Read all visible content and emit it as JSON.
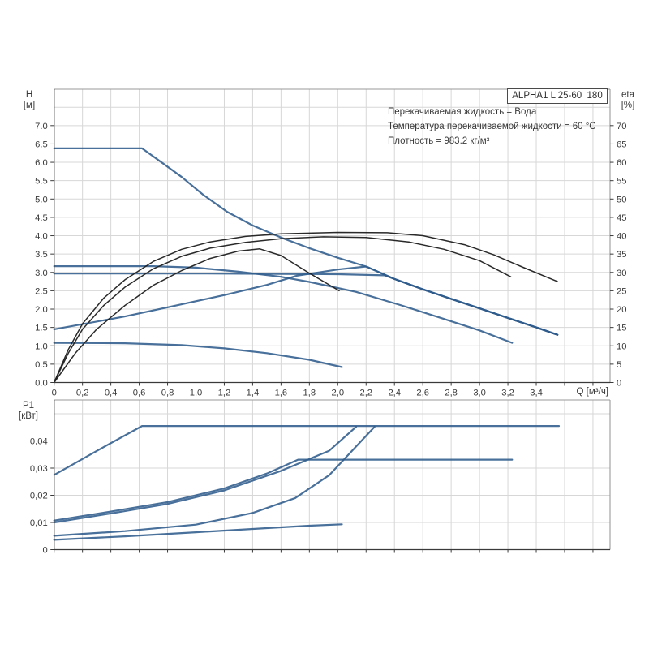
{
  "title_box": {
    "label": "ALPHA1 L 25-60  180"
  },
  "info": {
    "line1": "Перекачиваемая жидкость = Вода",
    "line2": "Температура перекачиваемой жидкости = 60 °C",
    "line3": "Плотность = 983.2 кг/м³"
  },
  "axis_units": {
    "head_top": "H",
    "head_bottom": "[м]",
    "eta_top": "eta",
    "eta_bottom": "[%]",
    "power_top": "P1",
    "power_bottom": "[кВт]",
    "flow": "Q [м³/ч]"
  },
  "colors": {
    "curve_blue": "#2f5c8c",
    "curve_black": "#1f1f1f",
    "grid": "#d7d7d7",
    "border": "#9a9a9a",
    "axis": "#3a3a3a",
    "text": "#3a3a3a"
  },
  "chart_data": [
    {
      "type": "line",
      "title": "ALPHA1 L 25-60 180",
      "xlabel": "Q [м³/ч]",
      "ylabel_left": "H [м]",
      "ylabel_right": "eta [%]",
      "xlim": [
        0,
        3.92
      ],
      "ylim_left": [
        0,
        8
      ],
      "ylim_right": [
        0,
        80
      ],
      "grid": true,
      "x_ticks": {
        "values": [
          0,
          0.2,
          0.4,
          0.6,
          0.8,
          1.0,
          1.2,
          1.4,
          1.6,
          1.8,
          2.0,
          2.2,
          2.4,
          2.6,
          2.8,
          3.0,
          3.2,
          3.4
        ],
        "labels": [
          "0",
          "0,2",
          "0,4",
          "0,6",
          "0,8",
          "1,0",
          "1,2",
          "1,4",
          "1,6",
          "1,8",
          "2,0",
          "2,2",
          "2,4",
          "2,6",
          "2,8",
          "3,0",
          "3,2",
          "3,4"
        ]
      },
      "y_ticks_left": {
        "values": [
          0,
          0.5,
          1,
          1.5,
          2,
          2.5,
          3,
          3.5,
          4,
          4.5,
          5,
          5.5,
          6,
          6.5,
          7
        ],
        "labels": [
          "0.0",
          "0.5",
          "1.0",
          "1.5",
          "2.0",
          "2.5",
          "3.0",
          "3.5",
          "4.0",
          "4.5",
          "5.0",
          "5.5",
          "6.0",
          "6.5",
          "7.0"
        ]
      },
      "y_ticks_right": {
        "values": [
          0,
          5,
          10,
          15,
          20,
          25,
          30,
          35,
          40,
          45,
          50,
          55,
          60,
          65,
          70
        ],
        "labels": [
          "0",
          "5",
          "10",
          "15",
          "20",
          "25",
          "30",
          "35",
          "40",
          "45",
          "50",
          "55",
          "60",
          "65",
          "70"
        ]
      },
      "series": [
        {
          "name": "head-max-speed",
          "color": "blue",
          "axis": "left",
          "points": [
            [
              0,
              6.38
            ],
            [
              0.62,
              6.38
            ],
            [
              0.75,
              6.02
            ],
            [
              0.9,
              5.6
            ],
            [
              1.05,
              5.12
            ],
            [
              1.22,
              4.65
            ],
            [
              1.4,
              4.28
            ],
            [
              1.6,
              3.95
            ],
            [
              1.8,
              3.66
            ],
            [
              2.0,
              3.4
            ],
            [
              2.2,
              3.16
            ],
            [
              2.4,
              2.82
            ],
            [
              2.6,
              2.54
            ],
            [
              2.8,
              2.28
            ],
            [
              3.0,
              2.02
            ],
            [
              3.2,
              1.76
            ],
            [
              3.4,
              1.5
            ],
            [
              3.55,
              1.3
            ]
          ]
        },
        {
          "name": "head-setting-high",
          "color": "blue",
          "axis": "left",
          "points": [
            [
              0,
              3.17
            ],
            [
              0.7,
              3.17
            ],
            [
              1.0,
              3.13
            ],
            [
              1.3,
              3.02
            ],
            [
              1.6,
              2.88
            ],
            [
              1.8,
              2.74
            ],
            [
              2.13,
              2.47
            ],
            [
              2.45,
              2.1
            ],
            [
              2.75,
              1.73
            ],
            [
              3.0,
              1.42
            ],
            [
              3.23,
              1.08
            ]
          ]
        },
        {
          "name": "head-setting-mid",
          "color": "blue",
          "axis": "left",
          "points": [
            [
              0,
              2.97
            ],
            [
              1.0,
              2.97
            ],
            [
              1.6,
              2.96
            ],
            [
              2.0,
              2.95
            ],
            [
              2.33,
              2.92
            ],
            [
              2.6,
              2.54
            ],
            [
              2.8,
              2.28
            ],
            [
              3.0,
              2.02
            ],
            [
              3.2,
              1.76
            ],
            [
              3.4,
              1.5
            ],
            [
              3.55,
              1.3
            ]
          ]
        },
        {
          "name": "head-proportional",
          "color": "blue",
          "axis": "left",
          "points": [
            [
              0,
              1.45
            ],
            [
              0.5,
              1.8
            ],
            [
              0.9,
              2.13
            ],
            [
              1.22,
              2.4
            ],
            [
              1.5,
              2.66
            ],
            [
              1.71,
              2.91
            ],
            [
              2.0,
              3.08
            ],
            [
              2.2,
              3.16
            ],
            [
              2.4,
              2.82
            ],
            [
              2.6,
              2.54
            ],
            [
              2.8,
              2.28
            ],
            [
              3.0,
              2.02
            ],
            [
              3.2,
              1.76
            ],
            [
              3.4,
              1.5
            ],
            [
              3.55,
              1.3
            ]
          ]
        },
        {
          "name": "head-min-speed",
          "color": "blue",
          "axis": "left",
          "points": [
            [
              0,
              1.08
            ],
            [
              0.5,
              1.07
            ],
            [
              0.9,
              1.02
            ],
            [
              1.2,
              0.93
            ],
            [
              1.5,
              0.8
            ],
            [
              1.8,
              0.62
            ],
            [
              2.03,
              0.42
            ]
          ]
        },
        {
          "name": "eta-max",
          "color": "black",
          "axis": "right",
          "points": [
            [
              0,
              0
            ],
            [
              0.1,
              9
            ],
            [
              0.2,
              16
            ],
            [
              0.35,
              23
            ],
            [
              0.5,
              28
            ],
            [
              0.7,
              33
            ],
            [
              0.9,
              36.3
            ],
            [
              1.1,
              38.3
            ],
            [
              1.35,
              39.8
            ],
            [
              1.6,
              40.5
            ],
            [
              2.0,
              40.9
            ],
            [
              2.35,
              40.8
            ],
            [
              2.6,
              40
            ],
            [
              2.9,
              37.5
            ],
            [
              3.1,
              34.8
            ],
            [
              3.3,
              31.5
            ],
            [
              3.55,
              27.5
            ]
          ]
        },
        {
          "name": "eta-mid",
          "color": "black",
          "axis": "right",
          "points": [
            [
              0,
              0
            ],
            [
              0.1,
              8
            ],
            [
              0.2,
              14.5
            ],
            [
              0.35,
              21
            ],
            [
              0.5,
              26
            ],
            [
              0.7,
              31
            ],
            [
              0.9,
              34.4
            ],
            [
              1.1,
              36.6
            ],
            [
              1.35,
              38.2
            ],
            [
              1.6,
              39.2
            ],
            [
              1.9,
              39.7
            ],
            [
              2.2,
              39.5
            ],
            [
              2.5,
              38.3
            ],
            [
              2.75,
              36.3
            ],
            [
              3.0,
              33.2
            ],
            [
              3.22,
              28.8
            ]
          ]
        },
        {
          "name": "eta-min",
          "color": "black",
          "axis": "right",
          "points": [
            [
              0,
              0
            ],
            [
              0.15,
              8
            ],
            [
              0.3,
              14.5
            ],
            [
              0.5,
              21
            ],
            [
              0.7,
              26.5
            ],
            [
              0.9,
              30.5
            ],
            [
              1.1,
              33.8
            ],
            [
              1.3,
              35.8
            ],
            [
              1.45,
              36.4
            ],
            [
              1.6,
              34.6
            ],
            [
              1.8,
              29.8
            ],
            [
              2.01,
              25
            ]
          ]
        }
      ]
    },
    {
      "type": "line",
      "title": "P1 power curves",
      "xlabel": "Q [м³/ч]",
      "ylabel_left": "P1 [кВт]",
      "xlim": [
        0,
        3.92
      ],
      "ylim_left": [
        0,
        0.0551
      ],
      "grid": true,
      "y_ticks_left": {
        "values": [
          0,
          0.01,
          0.02,
          0.03,
          0.04
        ],
        "labels": [
          "0",
          "0,01",
          "0,02",
          "0,03",
          "0,04"
        ]
      },
      "series": [
        {
          "name": "p1-max-speed",
          "color": "blue",
          "axis": "left",
          "points": [
            [
              0,
              0.0275
            ],
            [
              0.3,
              0.0363
            ],
            [
              0.62,
              0.0455
            ],
            [
              3.56,
              0.0455
            ]
          ]
        },
        {
          "name": "p1-setting-high",
          "color": "blue",
          "axis": "left",
          "points": [
            [
              0,
              0.0107
            ],
            [
              0.4,
              0.014
            ],
            [
              0.8,
              0.0175
            ],
            [
              1.2,
              0.0225
            ],
            [
              1.5,
              0.028
            ],
            [
              1.72,
              0.0331
            ],
            [
              3.23,
              0.0331
            ]
          ]
        },
        {
          "name": "p1-setting-mid",
          "color": "blue",
          "axis": "left",
          "points": [
            [
              0,
              0.01
            ],
            [
              0.4,
              0.0133
            ],
            [
              0.8,
              0.0168
            ],
            [
              1.2,
              0.0218
            ],
            [
              1.6,
              0.029
            ],
            [
              1.94,
              0.0364
            ],
            [
              2.13,
              0.0452
            ]
          ]
        },
        {
          "name": "p1-proportional",
          "color": "blue",
          "axis": "left",
          "points": [
            [
              0,
              0.0051
            ],
            [
              0.5,
              0.0068
            ],
            [
              1.0,
              0.0092
            ],
            [
              1.4,
              0.0135
            ],
            [
              1.7,
              0.019
            ],
            [
              1.94,
              0.0274
            ],
            [
              2.26,
              0.0452
            ]
          ]
        },
        {
          "name": "p1-min-speed",
          "color": "blue",
          "axis": "left",
          "points": [
            [
              0,
              0.0036
            ],
            [
              0.5,
              0.0049
            ],
            [
              1.0,
              0.0064
            ],
            [
              1.5,
              0.0079
            ],
            [
              1.8,
              0.0088
            ],
            [
              2.03,
              0.0093
            ]
          ]
        }
      ]
    }
  ]
}
